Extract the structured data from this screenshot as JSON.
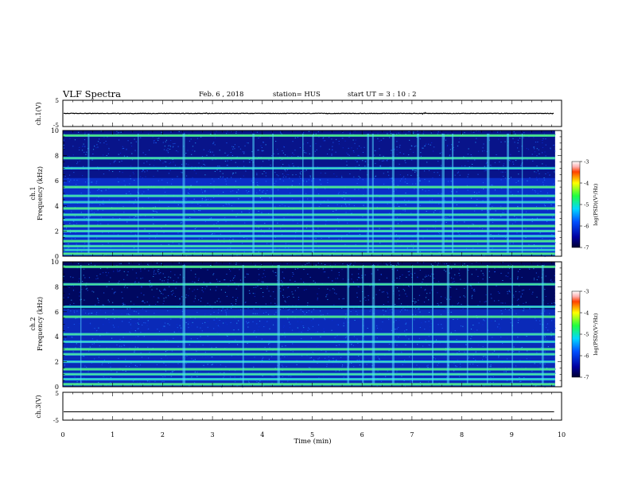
{
  "header": {
    "title": "VLF Spectra",
    "date": "Feb. 6 , 2018",
    "station": "station= HUS",
    "start": "start  UT =  3 : 10 : 2"
  },
  "chart_data": [
    {
      "type": "line",
      "ylabel": "ch.1(V)",
      "ylim": [
        -5,
        5
      ],
      "yticks": [
        "5",
        "-5"
      ],
      "xlim": [
        0,
        10
      ],
      "series": [
        {
          "values": [
            -0.1,
            0.1
          ],
          "note_color": "#000000"
        }
      ]
    },
    {
      "type": "heatmap",
      "ylabel_top": "ch.1",
      "ylabel": "Frequency (kHz)",
      "ylim": [
        0,
        10
      ],
      "yticks": [
        "0",
        "2",
        "4",
        "6",
        "8",
        "10"
      ],
      "xlim": [
        0,
        10
      ],
      "colorbar": {
        "label": "log(PSD)(V²/Hz)",
        "range": [
          -7,
          -3
        ],
        "ticks": [
          "-3",
          "-4",
          "-5",
          "-6",
          "-7"
        ]
      },
      "bands_khz": [
        0.2,
        0.5,
        0.8,
        1.2,
        1.6,
        2.0,
        2.4,
        2.9,
        3.3,
        3.8,
        4.3,
        4.8,
        5.5,
        7.0,
        7.8,
        9.6
      ],
      "bursts_min": [
        0.5,
        1.5,
        2.4,
        3.8,
        4.2,
        4.8,
        5.0,
        6.1,
        6.2,
        6.6,
        7.1,
        7.6,
        7.8,
        8.5,
        8.9,
        9.2
      ]
    },
    {
      "type": "heatmap",
      "ylabel_top": "ch.2",
      "ylabel": "Frequency (kHz)",
      "ylim": [
        0,
        10
      ],
      "yticks": [
        "0",
        "2",
        "4",
        "6",
        "8",
        "10"
      ],
      "xlim": [
        0,
        10
      ],
      "colorbar": {
        "label": "log(PSD)(V²/Hz)",
        "range": [
          -7,
          -3
        ],
        "ticks": [
          "-3",
          "-4",
          "-5",
          "-6",
          "-7"
        ]
      },
      "bands_khz": [
        0.2,
        0.6,
        1.0,
        1.4,
        2.0,
        2.6,
        3.0,
        3.6,
        4.2,
        5.6,
        6.4,
        8.2,
        9.6
      ],
      "bursts_min": [
        0.35,
        2.4,
        3.6,
        4.3,
        5.7,
        6.0,
        6.2,
        6.6,
        7.0,
        7.4,
        7.7,
        8.1,
        8.5,
        9.0,
        9.6
      ]
    },
    {
      "type": "line",
      "ylabel": "ch.3(V)",
      "ylim": [
        -5,
        5
      ],
      "yticks": [
        "5",
        "-5"
      ],
      "xlim": [
        0,
        10
      ],
      "series": [
        {
          "values": [
            -2.0,
            -2.0
          ],
          "note_color": "#000000"
        }
      ]
    }
  ],
  "xaxis": {
    "label": "Time (min)",
    "ticks": [
      "0",
      "1",
      "2",
      "3",
      "4",
      "5",
      "6",
      "7",
      "8",
      "9",
      "10"
    ]
  }
}
